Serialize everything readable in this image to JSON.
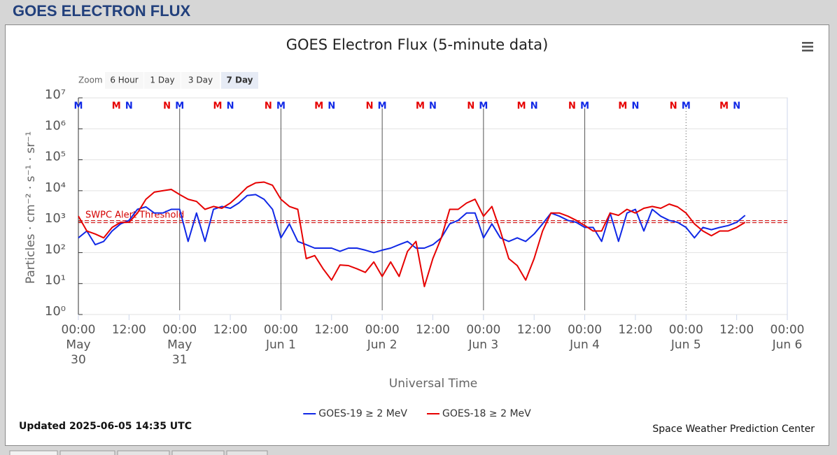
{
  "header": {
    "title": "GOES ELECTRON FLUX"
  },
  "chart_data": {
    "type": "line",
    "title": "GOES Electron Flux (5-minute data)",
    "zoom": {
      "label": "Zoom",
      "buttons": [
        "6 Hour",
        "1 Day",
        "3 Day",
        "7 Day"
      ],
      "selected": 3
    },
    "xlabel": "Universal Time",
    "ylabel": "Particles · cm⁻² · s⁻¹ · sr⁻¹",
    "log_y": true,
    "grid": true,
    "legend": "bottom",
    "ylim": [
      1,
      10000000
    ],
    "yticks": [
      {
        "value": 1,
        "label": "10⁰"
      },
      {
        "value": 10,
        "label": "10¹"
      },
      {
        "value": 100,
        "label": "10²"
      },
      {
        "value": 1000,
        "label": "10³"
      },
      {
        "value": 10000,
        "label": "10⁴"
      },
      {
        "value": 100000,
        "label": "10⁵"
      },
      {
        "value": 1000000,
        "label": "10⁶"
      },
      {
        "value": 10000000,
        "label": "10⁷"
      }
    ],
    "xlim": [
      0,
      168
    ],
    "xticks": [
      {
        "value": 0,
        "label": [
          "00:00",
          "May",
          "30"
        ]
      },
      {
        "value": 12,
        "label": [
          "12:00"
        ]
      },
      {
        "value": 24,
        "label": [
          "00:00",
          "May",
          "31"
        ]
      },
      {
        "value": 36,
        "label": [
          "12:00"
        ]
      },
      {
        "value": 48,
        "label": [
          "00:00",
          "Jun 1"
        ]
      },
      {
        "value": 60,
        "label": [
          "12:00"
        ]
      },
      {
        "value": 72,
        "label": [
          "00:00",
          "Jun 2"
        ]
      },
      {
        "value": 84,
        "label": [
          "12:00"
        ]
      },
      {
        "value": 96,
        "label": [
          "00:00",
          "Jun 3"
        ]
      },
      {
        "value": 108,
        "label": [
          "12:00"
        ]
      },
      {
        "value": 120,
        "label": [
          "00:00",
          "Jun 4"
        ]
      },
      {
        "value": 132,
        "label": [
          "12:00"
        ]
      },
      {
        "value": 144,
        "label": [
          "00:00",
          "Jun 5"
        ]
      },
      {
        "value": 156,
        "label": [
          "12:00"
        ]
      },
      {
        "value": 168,
        "label": [
          "00:00",
          "Jun 6"
        ]
      }
    ],
    "x": [
      0,
      2,
      4,
      6,
      8,
      10,
      12,
      14,
      16,
      18,
      20,
      22,
      24,
      26,
      28,
      30,
      32,
      34,
      36,
      38,
      40,
      42,
      44,
      46,
      48,
      50,
      52,
      54,
      56,
      58,
      60,
      62,
      64,
      66,
      68,
      70,
      72,
      74,
      76,
      78,
      80,
      82,
      84,
      86,
      88,
      90,
      92,
      94,
      96,
      98,
      100,
      102,
      104,
      106,
      108,
      110,
      112,
      114,
      116,
      118,
      120,
      122,
      124,
      126,
      128,
      130,
      132,
      134,
      136,
      138,
      140,
      142,
      144,
      146,
      148,
      150,
      152,
      154,
      156,
      158
    ],
    "series": [
      {
        "name": "GOES-19 ≥ 2 MeV",
        "color": "#1028e6",
        "values": [
          300,
          500,
          180,
          230,
          500,
          850,
          1100,
          2500,
          3000,
          1900,
          1900,
          2500,
          2500,
          230,
          1900,
          230,
          2500,
          3100,
          2700,
          4000,
          7000,
          7500,
          5300,
          2500,
          300,
          850,
          230,
          180,
          140,
          140,
          140,
          110,
          140,
          140,
          120,
          100,
          120,
          140,
          180,
          230,
          140,
          140,
          180,
          300,
          850,
          1100,
          1900,
          1900,
          300,
          850,
          300,
          230,
          300,
          230,
          400,
          850,
          1900,
          1500,
          1100,
          950,
          650,
          650,
          230,
          1900,
          230,
          1900,
          2500,
          500,
          2500,
          1500,
          1100,
          950,
          650,
          300,
          650,
          550,
          650,
          750,
          950,
          1600
        ]
      },
      {
        "name": "GOES-18 ≥ 2 MeV",
        "color": "#e60000",
        "values": [
          1500,
          500,
          400,
          300,
          650,
          950,
          950,
          1900,
          5300,
          9000,
          10000,
          11000,
          7500,
          5300,
          4500,
          2500,
          3100,
          2700,
          4000,
          7000,
          13000,
          18000,
          19000,
          15000,
          5300,
          3100,
          2500,
          64,
          80,
          30,
          13,
          40,
          38,
          30,
          23,
          50,
          17,
          50,
          17,
          110,
          230,
          8,
          64,
          300,
          2500,
          2500,
          4000,
          5300,
          1500,
          3100,
          500,
          64,
          38,
          13,
          64,
          500,
          1900,
          1900,
          1500,
          1100,
          750,
          500,
          500,
          1900,
          1600,
          2500,
          1900,
          2700,
          3100,
          2700,
          3700,
          3000,
          1900,
          850,
          500,
          350,
          500,
          500,
          650,
          950
        ]
      }
    ],
    "threshold": {
      "value": 1000,
      "label": "SWPC Alert Threshold",
      "color": "#d40000"
    },
    "markers": [
      {
        "color": "#1028e6",
        "labels": [
          "M",
          "N",
          "M",
          "N",
          "M",
          "N",
          "M",
          "N",
          "M",
          "N",
          "M",
          "N",
          "M",
          "N"
        ],
        "x": [
          0,
          12,
          24,
          36,
          48,
          60,
          72,
          84,
          96,
          108,
          120,
          132,
          144,
          156
        ]
      },
      {
        "color": "#e60000",
        "labels": [
          "M",
          "N",
          "M",
          "N",
          "M",
          "N",
          "M",
          "N",
          "M",
          "N",
          "M",
          "N",
          "M"
        ],
        "x": [
          9,
          21,
          33,
          45,
          57,
          69,
          81,
          93,
          105,
          117,
          129,
          141,
          153
        ]
      }
    ],
    "vlines": [
      {
        "value": 24,
        "style": "solid"
      },
      {
        "value": 48,
        "style": "solid"
      },
      {
        "value": 72,
        "style": "solid"
      },
      {
        "value": 96,
        "style": "solid"
      },
      {
        "value": 120,
        "style": "solid"
      },
      {
        "value": 144,
        "style": "dotted"
      }
    ],
    "updated": "Updated 2025-06-05 14:35 UTC",
    "credit": "Space Weather Prediction Center"
  }
}
